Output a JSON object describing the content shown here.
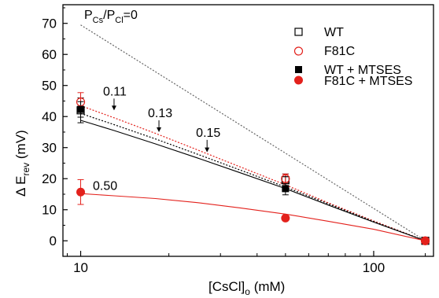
{
  "chart_data": {
    "type": "scatter",
    "x_scale": "log",
    "xlim": [
      8.7,
      160
    ],
    "ylim": [
      -5,
      76
    ],
    "x_ticks": [
      10,
      100
    ],
    "x_tick_labels": [
      "10",
      "100"
    ],
    "y_ticks": [
      0,
      10,
      20,
      30,
      40,
      50,
      60,
      70
    ],
    "y_tick_labels": [
      "0",
      "10",
      "20",
      "30",
      "40",
      "50",
      "60",
      "70"
    ],
    "xlabel": {
      "main": "[CsCl]",
      "sub": "o",
      "rest": " (mM)"
    },
    "ylabel": {
      "main": "Δ E",
      "sub": "rev",
      "rest": " (mV)"
    },
    "grid": false,
    "legend_position": "top-right",
    "series": [
      {
        "name": "WT",
        "marker": "open-square",
        "color": "#000000",
        "x": [
          10,
          50,
          150
        ],
        "y": [
          42,
          19.5,
          0
        ],
        "err": [
          4,
          2,
          0
        ]
      },
      {
        "name": "F81C",
        "marker": "open-circle",
        "color": "#e3211c",
        "x": [
          10,
          50,
          150
        ],
        "y": [
          44.7,
          20,
          0
        ],
        "err": [
          3,
          1.5,
          0
        ]
      },
      {
        "name": "WT + MTSES",
        "marker": "filled-square",
        "color": "#000000",
        "x": [
          10,
          50,
          150
        ],
        "y": [
          42.3,
          16.8,
          0
        ],
        "err": [
          2.5,
          2,
          0
        ]
      },
      {
        "name": "F81C + MTSES",
        "marker": "filled-circle",
        "color": "#e3211c",
        "x": [
          10,
          50,
          150
        ],
        "y": [
          15.7,
          7.3,
          0
        ],
        "err": [
          4,
          0,
          0
        ]
      }
    ],
    "model_curves": [
      {
        "ratio": 0,
        "style": "dotted",
        "color": "#666666",
        "x": [
          10,
          150
        ],
        "y": [
          69.5,
          0
        ]
      },
      {
        "ratio": 0.11,
        "style": "dotted",
        "color": "#e3211c",
        "x": [
          10,
          13,
          18,
          25,
          35,
          50,
          70,
          100,
          150
        ],
        "y": [
          43.5,
          39.6,
          34.6,
          29.3,
          23.8,
          18.0,
          12.2,
          6.4,
          0
        ]
      },
      {
        "ratio": 0.13,
        "style": "dotted",
        "color": "#000000",
        "x": [
          10,
          13,
          18,
          25,
          35,
          50,
          70,
          100,
          150
        ],
        "y": [
          41.0,
          37.4,
          32.8,
          27.9,
          22.8,
          17.3,
          11.9,
          6.2,
          0
        ]
      },
      {
        "ratio": 0.15,
        "style": "solid",
        "color": "#000000",
        "x": [
          10,
          13,
          18,
          25,
          35,
          50,
          70,
          100,
          150
        ],
        "y": [
          38.8,
          35.5,
          31.2,
          26.7,
          21.9,
          16.8,
          11.5,
          6.0,
          0
        ]
      },
      {
        "ratio": 0.5,
        "style": "solid",
        "color": "#e3211c",
        "x": [
          10,
          13,
          18,
          25,
          35,
          50,
          70,
          100,
          150
        ],
        "y": [
          15.2,
          14.5,
          13.6,
          12.3,
          10.6,
          8.6,
          6.3,
          3.7,
          0
        ]
      }
    ],
    "annotations": [
      {
        "text": "0.11",
        "x": 13,
        "y": 46.8,
        "arrow_to": [
          13,
          42
        ]
      },
      {
        "text": "0.13",
        "x": 18.5,
        "y": 39.8,
        "arrow_to": [
          18.5,
          35
        ]
      },
      {
        "text": "0.15",
        "x": 27,
        "y": 33.5,
        "arrow_to": [
          27,
          28.5
        ]
      },
      {
        "text": "0.50",
        "x": 12,
        "y": 16.4
      }
    ],
    "ratio_label": {
      "p1": "P",
      "s1": "Cs",
      "slash": "/",
      "p2": "P",
      "s2": "Cl",
      "eq": "=0"
    }
  }
}
